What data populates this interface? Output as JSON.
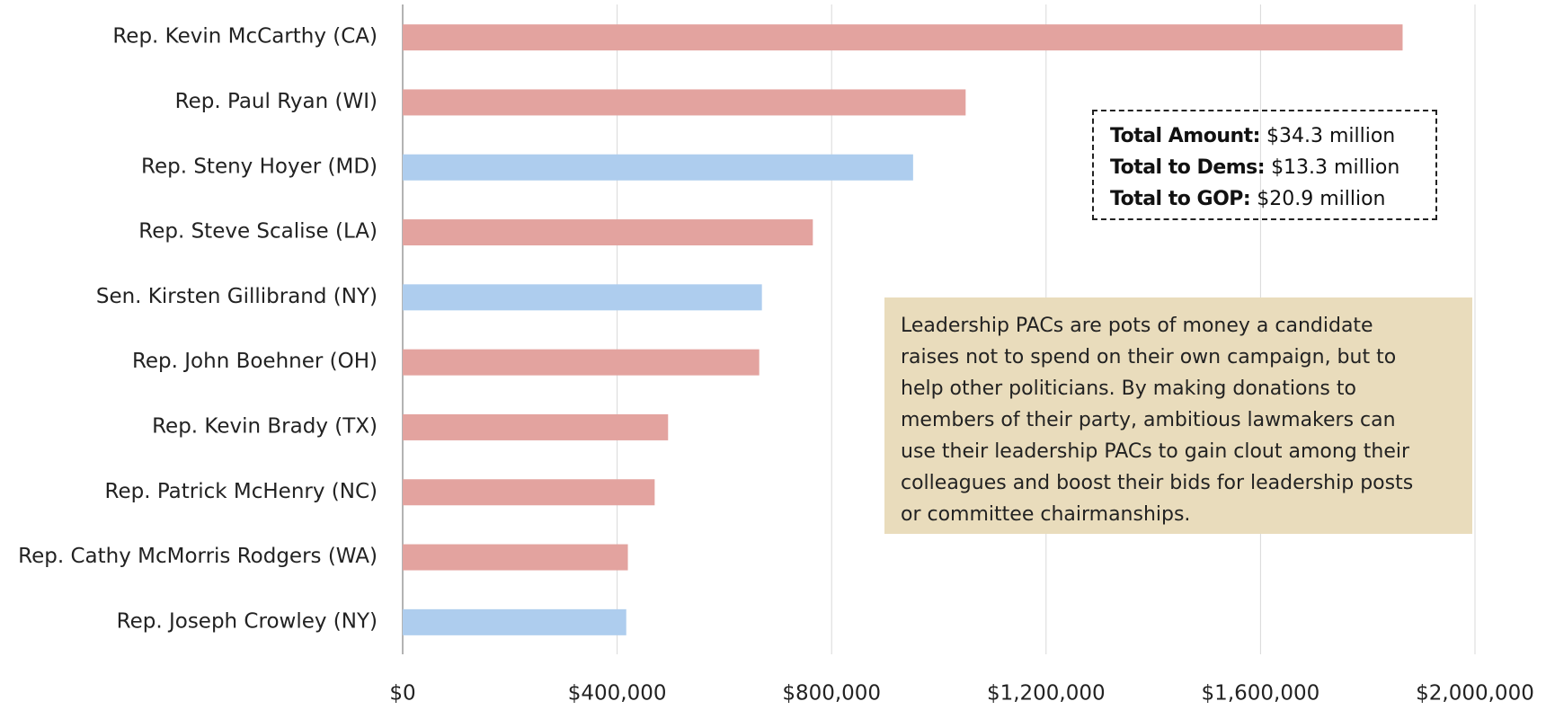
{
  "chart_data": {
    "type": "hbar",
    "categories": [
      "Rep. Kevin McCarthy (CA)",
      "Rep. Paul Ryan (WI)",
      "Rep. Steny Hoyer (MD)",
      "Rep. Steve Scalise (LA)",
      "Sen. Kirsten Gillibrand (NY)",
      "Rep. John Boehner (OH)",
      "Rep. Kevin Brady (TX)",
      "Rep. Patrick McHenry (NC)",
      "Rep. Cathy McMorris Rodgers (WA)",
      "Rep. Joseph Crowley (NY)"
    ],
    "values": [
      1865000,
      1050000,
      952000,
      765000,
      670000,
      665000,
      495000,
      470000,
      420000,
      417000
    ],
    "colors": [
      "#e3a39f",
      "#e3a39f",
      "#aecdee",
      "#e3a39f",
      "#aecdee",
      "#e3a39f",
      "#e3a39f",
      "#e3a39f",
      "#e3a39f",
      "#aecdee"
    ],
    "xlim": [
      0,
      2000000
    ],
    "xticks": [
      {
        "value": 0,
        "label": "$0"
      },
      {
        "value": 400000,
        "label": "$400,000"
      },
      {
        "value": 800000,
        "label": "$800,000"
      },
      {
        "value": 1200000,
        "label": "$1,200,000"
      },
      {
        "value": 1600000,
        "label": "$1,600,000"
      },
      {
        "value": 2000000,
        "label": "$2,000,000"
      }
    ],
    "grid": true,
    "totals": [
      {
        "label": "Total Amount:",
        "value": "$34.3 million"
      },
      {
        "label": "Total to Dems:",
        "value": "$13.3 million"
      },
      {
        "label": "Total to GOP:",
        "value": "$20.9 million"
      }
    ],
    "note_lines": [
      "Leadership PACs are pots of money a candidate",
      "raises not to spend on their own campaign, but to",
      "help other politicians. By making donations to",
      "members of their party, ambitious lawmakers can",
      "use their leadership PACs to gain clout among their",
      "colleagues and boost their bids for leadership posts",
      "or committee chairmanships."
    ]
  }
}
